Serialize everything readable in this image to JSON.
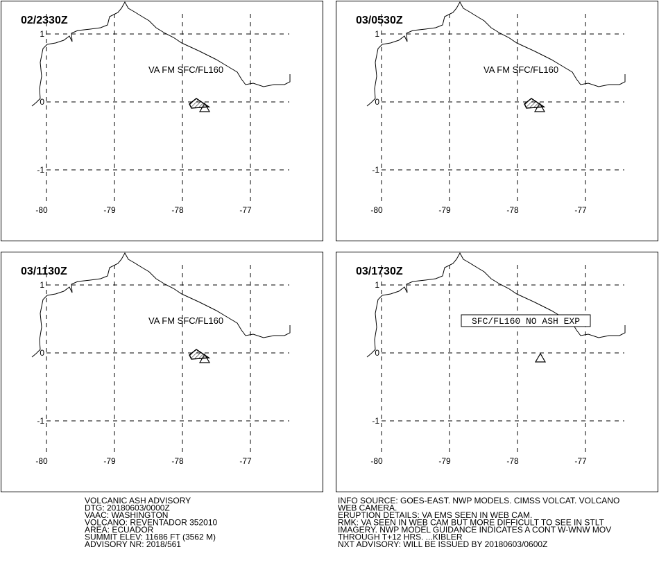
{
  "panels": [
    {
      "time": "02/2330Z",
      "label": "VA FM SFC/FL160"
    },
    {
      "time": "03/0530Z",
      "label": "VA FM SFC/FL160"
    },
    {
      "time": "03/1130Z",
      "label": "VA FM SFC/FL160"
    },
    {
      "time": "03/1730Z",
      "label": "SFC/FL160 NO ASH EXP"
    }
  ],
  "lon_labels": [
    "-80",
    "-79",
    "-78",
    "-77"
  ],
  "lat_labels": [
    "1",
    "0",
    "-1"
  ],
  "advisory_left": [
    "VOLCANIC ASH ADVISORY",
    "DTG: 20180603/0000Z",
    "VAAC: WASHINGTON",
    "VOLCANO: REVENTADOR 352010",
    "AREA: ECUADOR",
    "SUMMIT ELEV: 11686 FT (3562 M)",
    "ADVISORY NR: 2018/561"
  ],
  "advisory_right": [
    "INFO SOURCE: GOES-EAST. NWP MODELS. CIMSS VOLCAT. VOLCANO",
    "WEB CAMERA.",
    "ERUPTION DETAILS: VA EMS SEEN IN WEB CAM.",
    "RMK: VA SEEN IN WEB CAM BUT MORE DIFFICULT TO SEE IN STLT",
    "IMAGERY. NWP MODEL GUIDANCE INDICATES A CONT W-WNW MOV",
    "THROUGH T+12 HRS. ...KIBLER",
    "NXT ADVISORY: WILL BE ISSUED BY 20180603/0600Z"
  ]
}
